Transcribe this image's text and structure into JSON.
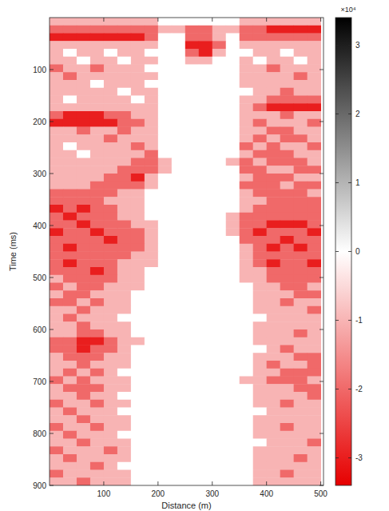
{
  "chart_data": {
    "type": "heatmap",
    "x_label": "Distance (m)",
    "y_label": "Time (ms)",
    "xlim": [
      0,
      505
    ],
    "ylim": [
      0,
      900
    ],
    "xticks": [
      100,
      200,
      300,
      400,
      500
    ],
    "yticks": [
      100,
      200,
      300,
      400,
      500,
      600,
      700,
      800,
      900
    ],
    "x_edges": [
      0,
      25,
      50,
      75,
      100,
      125,
      150,
      175,
      200,
      225,
      250,
      275,
      300,
      325,
      350,
      375,
      400,
      425,
      450,
      475,
      500
    ],
    "y_edges": [
      0,
      15,
      30,
      45,
      60,
      75,
      90,
      105,
      120,
      135,
      150,
      165,
      180,
      195,
      210,
      225,
      240,
      255,
      270,
      285,
      300,
      315,
      330,
      345,
      360,
      375,
      390,
      405,
      420,
      435,
      450,
      465,
      480,
      495,
      510,
      525,
      540,
      555,
      570,
      585,
      600,
      615,
      630,
      645,
      660,
      675,
      690,
      705,
      720,
      735,
      750,
      765,
      780,
      795,
      810,
      825,
      840,
      855,
      870,
      885,
      900
    ],
    "cells": [
      [
        -1,
        -1,
        -1,
        -1,
        -1,
        -1,
        -1,
        -1,
        0,
        0,
        0,
        0,
        0,
        0,
        -1,
        -1,
        -1,
        -1,
        -1,
        -1
      ],
      [
        -2,
        -2,
        -2,
        -2,
        -2,
        -2,
        -2,
        -2,
        -1,
        -1,
        -2,
        -2,
        -1,
        -1,
        -2,
        -2,
        -3,
        -3,
        -3,
        -3
      ],
      [
        -3,
        -3,
        -3,
        -3,
        -3,
        -3,
        -3,
        -2,
        0,
        0,
        -2,
        -2,
        -1,
        0,
        -2,
        -2,
        -2,
        -2,
        -2,
        -2
      ],
      [
        -1,
        -1,
        -1,
        -1,
        -1,
        -1,
        -1,
        -1,
        0,
        0,
        -3,
        -3,
        -2,
        0,
        -1,
        -1,
        -1,
        -1,
        -1,
        -1
      ],
      [
        -1,
        0,
        -1,
        -1,
        0,
        -1,
        -1,
        0,
        0,
        0,
        -2,
        -3,
        -1,
        0,
        0,
        -1,
        -1,
        0,
        -1,
        -1
      ],
      [
        -1,
        -1,
        0,
        -1,
        -1,
        0,
        -1,
        -1,
        0,
        0,
        -1,
        -1,
        0,
        0,
        -1,
        0,
        -1,
        -1,
        0,
        -1
      ],
      [
        -2,
        -1,
        -1,
        -2,
        -1,
        -1,
        -1,
        0,
        0,
        0,
        0,
        0,
        0,
        0,
        -1,
        -1,
        -2,
        -1,
        -1,
        -1
      ],
      [
        -1,
        -2,
        -1,
        -1,
        -1,
        -1,
        -1,
        -1,
        0,
        0,
        0,
        0,
        0,
        0,
        -1,
        -1,
        -1,
        -1,
        -2,
        -1
      ],
      [
        -1,
        -1,
        -1,
        0,
        -1,
        -1,
        -1,
        0,
        0,
        0,
        0,
        0,
        0,
        0,
        -1,
        -1,
        -1,
        -1,
        -1,
        -1
      ],
      [
        -1,
        -1,
        -1,
        -1,
        -1,
        0,
        -1,
        -1,
        0,
        0,
        0,
        0,
        0,
        0,
        0,
        -1,
        -1,
        -2,
        -1,
        -1
      ],
      [
        -1,
        0,
        -1,
        -1,
        -1,
        -1,
        0,
        -1,
        0,
        0,
        0,
        0,
        0,
        0,
        -1,
        -1,
        -2,
        -2,
        -2,
        -2
      ],
      [
        -1,
        -1,
        -1,
        -1,
        -1,
        -1,
        -1,
        -1,
        0,
        0,
        0,
        0,
        0,
        0,
        -1,
        -2,
        -3,
        -3,
        -3,
        -3
      ],
      [
        -2,
        -3,
        -3,
        -3,
        -2,
        -2,
        -1,
        -1,
        0,
        0,
        0,
        0,
        0,
        0,
        -1,
        -1,
        -1,
        -2,
        -1,
        -1
      ],
      [
        -3,
        -3,
        -3,
        -3,
        -3,
        -2,
        -2,
        -1,
        0,
        0,
        0,
        0,
        0,
        0,
        -1,
        -2,
        -1,
        -1,
        -1,
        -2
      ],
      [
        -1,
        -1,
        -2,
        -1,
        -1,
        -2,
        -1,
        -1,
        0,
        0,
        0,
        0,
        0,
        0,
        -1,
        -1,
        -2,
        -2,
        -1,
        -1
      ],
      [
        -1,
        -1,
        -1,
        -1,
        -2,
        -1,
        -1,
        -1,
        0,
        0,
        0,
        0,
        0,
        0,
        -1,
        -2,
        -1,
        -2,
        -2,
        -1
      ],
      [
        -1,
        0,
        -1,
        -1,
        -1,
        -1,
        -2,
        -1,
        0,
        0,
        0,
        0,
        0,
        0,
        -2,
        -1,
        -2,
        -1,
        -1,
        -2
      ],
      [
        -1,
        -1,
        0,
        -1,
        -1,
        -1,
        -1,
        -2,
        0,
        0,
        0,
        0,
        0,
        0,
        -1,
        -2,
        -2,
        -2,
        -1,
        -1
      ],
      [
        -1,
        -1,
        -1,
        -1,
        -1,
        -1,
        -2,
        -2,
        -1,
        0,
        0,
        0,
        0,
        -1,
        -2,
        -1,
        -2,
        -2,
        -2,
        -1
      ],
      [
        -1,
        -1,
        -1,
        -1,
        -1,
        -2,
        -2,
        -2,
        -1,
        0,
        0,
        0,
        0,
        0,
        -2,
        -2,
        -1,
        -1,
        -2,
        -2
      ],
      [
        -1,
        -1,
        -1,
        -1,
        -2,
        -2,
        -3,
        -1,
        0,
        0,
        0,
        0,
        0,
        0,
        -1,
        -2,
        -2,
        -2,
        -1,
        -1
      ],
      [
        -1,
        -1,
        -1,
        -2,
        -2,
        -2,
        -2,
        -1,
        0,
        0,
        0,
        0,
        0,
        0,
        -2,
        -2,
        -2,
        -1,
        -2,
        -2
      ],
      [
        -2,
        -2,
        -2,
        -2,
        -2,
        -1,
        -1,
        0,
        0,
        0,
        0,
        0,
        0,
        0,
        -1,
        -2,
        -2,
        -2,
        -2,
        -1
      ],
      [
        -2,
        -2,
        -2,
        -2,
        -1,
        -1,
        -1,
        0,
        0,
        0,
        0,
        0,
        0,
        0,
        -1,
        -1,
        -2,
        -2,
        -2,
        -2
      ],
      [
        -3,
        -2,
        -3,
        -2,
        -2,
        -1,
        -1,
        0,
        0,
        0,
        0,
        0,
        0,
        0,
        -1,
        -2,
        -2,
        -2,
        -2,
        -2
      ],
      [
        -2,
        -3,
        -2,
        -2,
        -2,
        -1,
        -1,
        0,
        0,
        0,
        0,
        0,
        0,
        -1,
        -2,
        -2,
        -2,
        -2,
        -2,
        -2
      ],
      [
        -2,
        -2,
        -3,
        -2,
        -2,
        -2,
        -1,
        -1,
        0,
        0,
        0,
        0,
        0,
        -1,
        -2,
        -2,
        -3,
        -3,
        -3,
        -2
      ],
      [
        -3,
        -2,
        -2,
        -3,
        -2,
        -2,
        -2,
        -1,
        0,
        0,
        0,
        0,
        0,
        -1,
        -2,
        -3,
        -2,
        -2,
        -2,
        -3
      ],
      [
        -2,
        -2,
        -2,
        -2,
        -3,
        -2,
        -2,
        -1,
        0,
        0,
        0,
        0,
        0,
        0,
        -2,
        -2,
        -2,
        -3,
        -2,
        -2
      ],
      [
        -2,
        -3,
        -2,
        -2,
        -2,
        -2,
        -2,
        -1,
        0,
        0,
        0,
        0,
        0,
        0,
        -1,
        -2,
        -3,
        -2,
        -3,
        -2
      ],
      [
        -2,
        -2,
        -2,
        -2,
        -2,
        -2,
        -1,
        -1,
        0,
        0,
        0,
        0,
        0,
        0,
        -1,
        -2,
        -2,
        -2,
        -2,
        -2
      ],
      [
        -2,
        -3,
        -2,
        -2,
        -2,
        -1,
        -1,
        -1,
        0,
        0,
        0,
        0,
        0,
        0,
        -1,
        -2,
        -3,
        -2,
        -2,
        -3
      ],
      [
        -2,
        -2,
        -2,
        -3,
        -2,
        -1,
        -1,
        0,
        0,
        0,
        0,
        0,
        0,
        0,
        -1,
        -1,
        -2,
        -2,
        -2,
        -2
      ],
      [
        -1,
        -2,
        -2,
        -2,
        -2,
        -1,
        -1,
        0,
        0,
        0,
        0,
        0,
        0,
        0,
        -1,
        -1,
        -2,
        -2,
        -2,
        -2
      ],
      [
        -2,
        -1,
        -2,
        -2,
        -1,
        -1,
        -1,
        0,
        0,
        0,
        0,
        0,
        0,
        0,
        0,
        -1,
        -1,
        -2,
        -2,
        -1
      ],
      [
        -1,
        -2,
        -2,
        -1,
        -1,
        -1,
        0,
        0,
        0,
        0,
        0,
        0,
        0,
        0,
        0,
        -1,
        -1,
        -1,
        -2,
        -2
      ],
      [
        -2,
        -2,
        -1,
        -2,
        -1,
        -1,
        0,
        0,
        0,
        0,
        0,
        0,
        0,
        0,
        0,
        -1,
        -1,
        -2,
        -1,
        -1
      ],
      [
        -1,
        -1,
        -2,
        -1,
        -1,
        -1,
        0,
        0,
        0,
        0,
        0,
        0,
        0,
        0,
        0,
        -1,
        -1,
        -1,
        -1,
        -2
      ],
      [
        -1,
        -2,
        -1,
        -1,
        -1,
        0,
        0,
        0,
        0,
        0,
        0,
        0,
        0,
        0,
        0,
        0,
        -1,
        -1,
        -1,
        -1
      ],
      [
        -1,
        -1,
        -2,
        -1,
        -1,
        -1,
        0,
        0,
        0,
        0,
        0,
        0,
        0,
        0,
        0,
        -1,
        -1,
        -1,
        -1,
        -1
      ],
      [
        -1,
        -1,
        -2,
        -2,
        -1,
        -1,
        0,
        0,
        0,
        0,
        0,
        0,
        0,
        0,
        0,
        -1,
        -1,
        -1,
        -2,
        -1
      ],
      [
        -2,
        -2,
        -3,
        -3,
        -2,
        -1,
        -1,
        0,
        0,
        0,
        0,
        0,
        0,
        0,
        0,
        -1,
        -1,
        -1,
        -1,
        -1
      ],
      [
        -2,
        -2,
        -3,
        -2,
        -2,
        -1,
        0,
        0,
        0,
        0,
        0,
        0,
        0,
        0,
        0,
        0,
        -1,
        -2,
        -1,
        -1
      ],
      [
        -1,
        -2,
        -2,
        -2,
        -1,
        -1,
        0,
        0,
        0,
        0,
        0,
        0,
        0,
        0,
        0,
        -1,
        -1,
        -1,
        -2,
        -2
      ],
      [
        -1,
        -1,
        -2,
        -1,
        -1,
        -1,
        0,
        0,
        0,
        0,
        0,
        0,
        0,
        0,
        0,
        -1,
        -2,
        -1,
        -1,
        -2
      ],
      [
        -1,
        -2,
        -1,
        -2,
        -1,
        0,
        0,
        0,
        0,
        0,
        0,
        0,
        0,
        0,
        0,
        -1,
        -1,
        -2,
        -2,
        -2
      ],
      [
        -2,
        -1,
        -2,
        -1,
        -1,
        -1,
        0,
        0,
        0,
        0,
        0,
        0,
        0,
        0,
        -1,
        -1,
        -2,
        -2,
        -2,
        -1
      ],
      [
        -1,
        -2,
        -2,
        -2,
        -1,
        -1,
        0,
        0,
        0,
        0,
        0,
        0,
        0,
        0,
        0,
        -1,
        -1,
        -1,
        -2,
        -2
      ],
      [
        -1,
        -1,
        -2,
        -1,
        -1,
        0,
        0,
        0,
        0,
        0,
        0,
        0,
        0,
        0,
        0,
        -1,
        -1,
        -1,
        -1,
        -2
      ],
      [
        -2,
        -1,
        -1,
        -2,
        -1,
        -1,
        0,
        0,
        0,
        0,
        0,
        0,
        0,
        0,
        0,
        -1,
        -1,
        -2,
        -1,
        -1
      ],
      [
        -1,
        -2,
        -1,
        -1,
        -1,
        0,
        0,
        0,
        0,
        0,
        0,
        0,
        0,
        0,
        0,
        0,
        -1,
        -1,
        -1,
        -1
      ],
      [
        -1,
        -1,
        -2,
        -1,
        -1,
        -1,
        0,
        0,
        0,
        0,
        0,
        0,
        0,
        0,
        0,
        -1,
        -1,
        -1,
        -1,
        -1
      ],
      [
        -2,
        -1,
        -1,
        -2,
        -1,
        -1,
        0,
        0,
        0,
        0,
        0,
        0,
        0,
        0,
        0,
        -1,
        -1,
        -2,
        -1,
        -1
      ],
      [
        -1,
        -2,
        -1,
        -1,
        -1,
        0,
        0,
        0,
        0,
        0,
        0,
        0,
        0,
        0,
        0,
        -1,
        -1,
        -1,
        -1,
        -1
      ],
      [
        -1,
        -1,
        -2,
        -1,
        -1,
        -1,
        0,
        0,
        0,
        0,
        0,
        0,
        0,
        0,
        0,
        0,
        -1,
        -1,
        -1,
        -2
      ],
      [
        -2,
        -1,
        -1,
        -1,
        -2,
        -1,
        0,
        0,
        0,
        0,
        0,
        0,
        0,
        0,
        0,
        -1,
        -1,
        -1,
        -1,
        -1
      ],
      [
        -1,
        -2,
        -1,
        -1,
        -1,
        -1,
        0,
        0,
        0,
        0,
        0,
        0,
        0,
        0,
        0,
        -1,
        -1,
        -1,
        -2,
        -1
      ],
      [
        -1,
        -1,
        -1,
        -2,
        -1,
        0,
        0,
        0,
        0,
        0,
        0,
        0,
        0,
        0,
        0,
        -1,
        -1,
        -1,
        -1,
        -1
      ],
      [
        -2,
        -1,
        -1,
        -1,
        -1,
        -1,
        0,
        0,
        0,
        0,
        0,
        0,
        0,
        0,
        0,
        -1,
        -1,
        -2,
        -1,
        -1
      ],
      [
        -1,
        -1,
        -2,
        -1,
        -1,
        -1,
        0,
        0,
        0,
        0,
        0,
        0,
        0,
        0,
        0,
        -1,
        -1,
        -1,
        -1,
        -1
      ]
    ],
    "colorbar": {
      "lim": [
        -3.4,
        3.4
      ],
      "ticks": [
        -3,
        -2,
        -1,
        0,
        1,
        2,
        3
      ],
      "label": "×10⁴"
    }
  }
}
